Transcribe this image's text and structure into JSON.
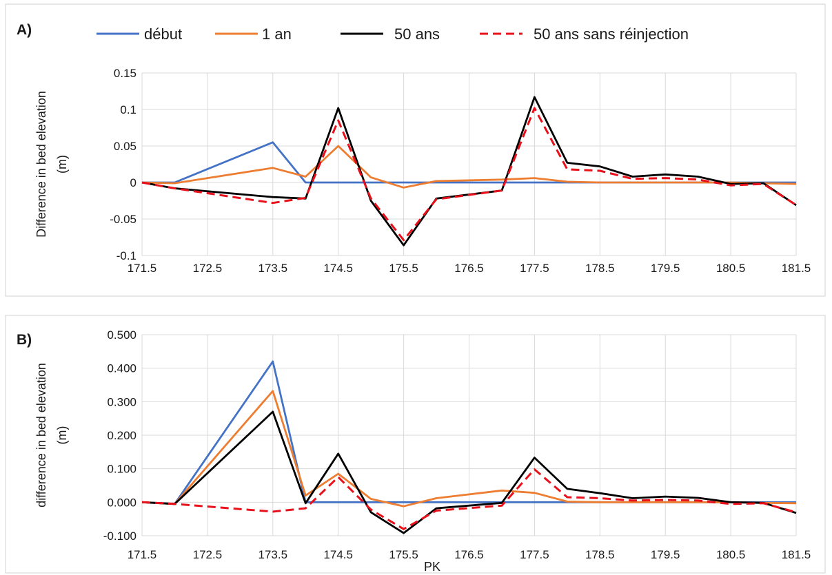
{
  "chart_data": [
    {
      "type": "line",
      "panel_label": "A)",
      "xlabel": "",
      "ylabel_lines": [
        "Difference in bed elevation",
        "(m)"
      ],
      "x": [
        171.5,
        172,
        173.5,
        174,
        174.5,
        175,
        175.5,
        176,
        177,
        177.5,
        178,
        178.5,
        179,
        179.5,
        180,
        180.5,
        181,
        181.5
      ],
      "xlim": [
        171.5,
        181.5
      ],
      "xticks": [
        171.5,
        172.5,
        173.5,
        174.5,
        175.5,
        176.5,
        177.5,
        178.5,
        179.5,
        180.5,
        181.5
      ],
      "xtick_labels": [
        "171.5",
        "172.5",
        "173.5",
        "174.5",
        "175.5",
        "176.5",
        "177.5",
        "178.5",
        "179.5",
        "180.5",
        "181.5"
      ],
      "ylim": [
        -0.1,
        0.15
      ],
      "yticks": [
        -0.1,
        -0.05,
        0,
        0.05,
        0.1,
        0.15
      ],
      "ytick_labels": [
        "-0.1",
        "-0.05",
        "0",
        "0.05",
        "0.1",
        "0.15"
      ],
      "grid": true,
      "legend_position": "top",
      "series": [
        {
          "name": "début",
          "color": "#4472c4",
          "dash": "solid",
          "values": [
            0,
            0,
            0.055,
            0,
            0,
            0,
            0,
            0,
            0,
            0,
            0,
            0,
            0,
            0,
            0,
            0,
            0,
            0
          ]
        },
        {
          "name": "1 an",
          "color": "#ed7d31",
          "dash": "solid",
          "values": [
            0,
            -0.001,
            0.02,
            0.008,
            0.05,
            0.007,
            -0.007,
            0.002,
            0.004,
            0.006,
            0.001,
            0,
            0,
            0,
            0,
            0,
            -0.001,
            -0.002
          ]
        },
        {
          "name": "50 ans",
          "color": "#000000",
          "dash": "solid",
          "values": [
            0,
            -0.008,
            -0.02,
            -0.022,
            0.102,
            -0.025,
            -0.086,
            -0.022,
            -0.011,
            0.117,
            0.027,
            0.022,
            0.008,
            0.011,
            0.008,
            -0.002,
            -0.001,
            -0.031
          ]
        },
        {
          "name": "50 ans sans réinjection",
          "color": "#e8101b",
          "dash": "dashed",
          "values": [
            0,
            -0.008,
            -0.028,
            -0.021,
            0.085,
            -0.022,
            -0.079,
            -0.023,
            -0.011,
            0.102,
            0.018,
            0.016,
            0.005,
            0.006,
            0.004,
            -0.004,
            -0.002,
            -0.031
          ]
        }
      ]
    },
    {
      "type": "line",
      "panel_label": "B)",
      "xlabel": "PK",
      "ylabel_lines": [
        "difference in bed elevation",
        "(m)"
      ],
      "x": [
        171.5,
        172,
        173.5,
        174,
        174.5,
        175,
        175.5,
        176,
        177,
        177.5,
        178,
        178.5,
        179,
        179.5,
        180,
        180.5,
        181,
        181.5
      ],
      "xlim": [
        171.5,
        181.5
      ],
      "xticks": [
        171.5,
        172.5,
        173.5,
        174.5,
        175.5,
        176.5,
        177.5,
        178.5,
        179.5,
        180.5,
        181.5
      ],
      "xtick_labels": [
        "171.5",
        "172.5",
        "173.5",
        "174.5",
        "175.5",
        "176.5",
        "177.5",
        "178.5",
        "179.5",
        "180.5",
        "181.5"
      ],
      "ylim": [
        -0.1,
        0.5
      ],
      "yticks": [
        -0.1,
        0,
        0.1,
        0.2,
        0.3,
        0.4,
        0.5
      ],
      "ytick_labels": [
        "-0.100",
        "0.000",
        "0.100",
        "0.200",
        "0.300",
        "0.400",
        "0.500"
      ],
      "grid": true,
      "series": [
        {
          "name": "début",
          "color": "#4472c4",
          "dash": "solid",
          "values": [
            0,
            -0.005,
            0.42,
            0,
            0,
            0,
            0,
            0,
            0,
            0,
            0,
            0,
            0,
            0,
            0,
            0,
            0,
            0
          ]
        },
        {
          "name": "1 an",
          "color": "#ed7d31",
          "dash": "solid",
          "values": [
            0,
            -0.005,
            0.332,
            0.02,
            0.085,
            0.01,
            -0.012,
            0.012,
            0.035,
            0.028,
            0.002,
            0,
            0,
            0,
            0,
            0,
            -0.002,
            -0.003
          ]
        },
        {
          "name": "50 ans",
          "color": "#000000",
          "dash": "solid",
          "values": [
            0,
            -0.005,
            0.27,
            -0.003,
            0.145,
            -0.03,
            -0.092,
            -0.018,
            -0.002,
            0.133,
            0.04,
            0.027,
            0.012,
            0.017,
            0.013,
            0,
            -0.002,
            -0.032
          ]
        },
        {
          "name": "50 ans sans réinjection",
          "color": "#e8101b",
          "dash": "dashed",
          "values": [
            0,
            -0.005,
            -0.028,
            -0.018,
            0.075,
            -0.022,
            -0.08,
            -0.025,
            -0.01,
            0.098,
            0.015,
            0.012,
            0.005,
            0.007,
            0.005,
            -0.005,
            -0.003,
            -0.03
          ]
        }
      ]
    }
  ]
}
